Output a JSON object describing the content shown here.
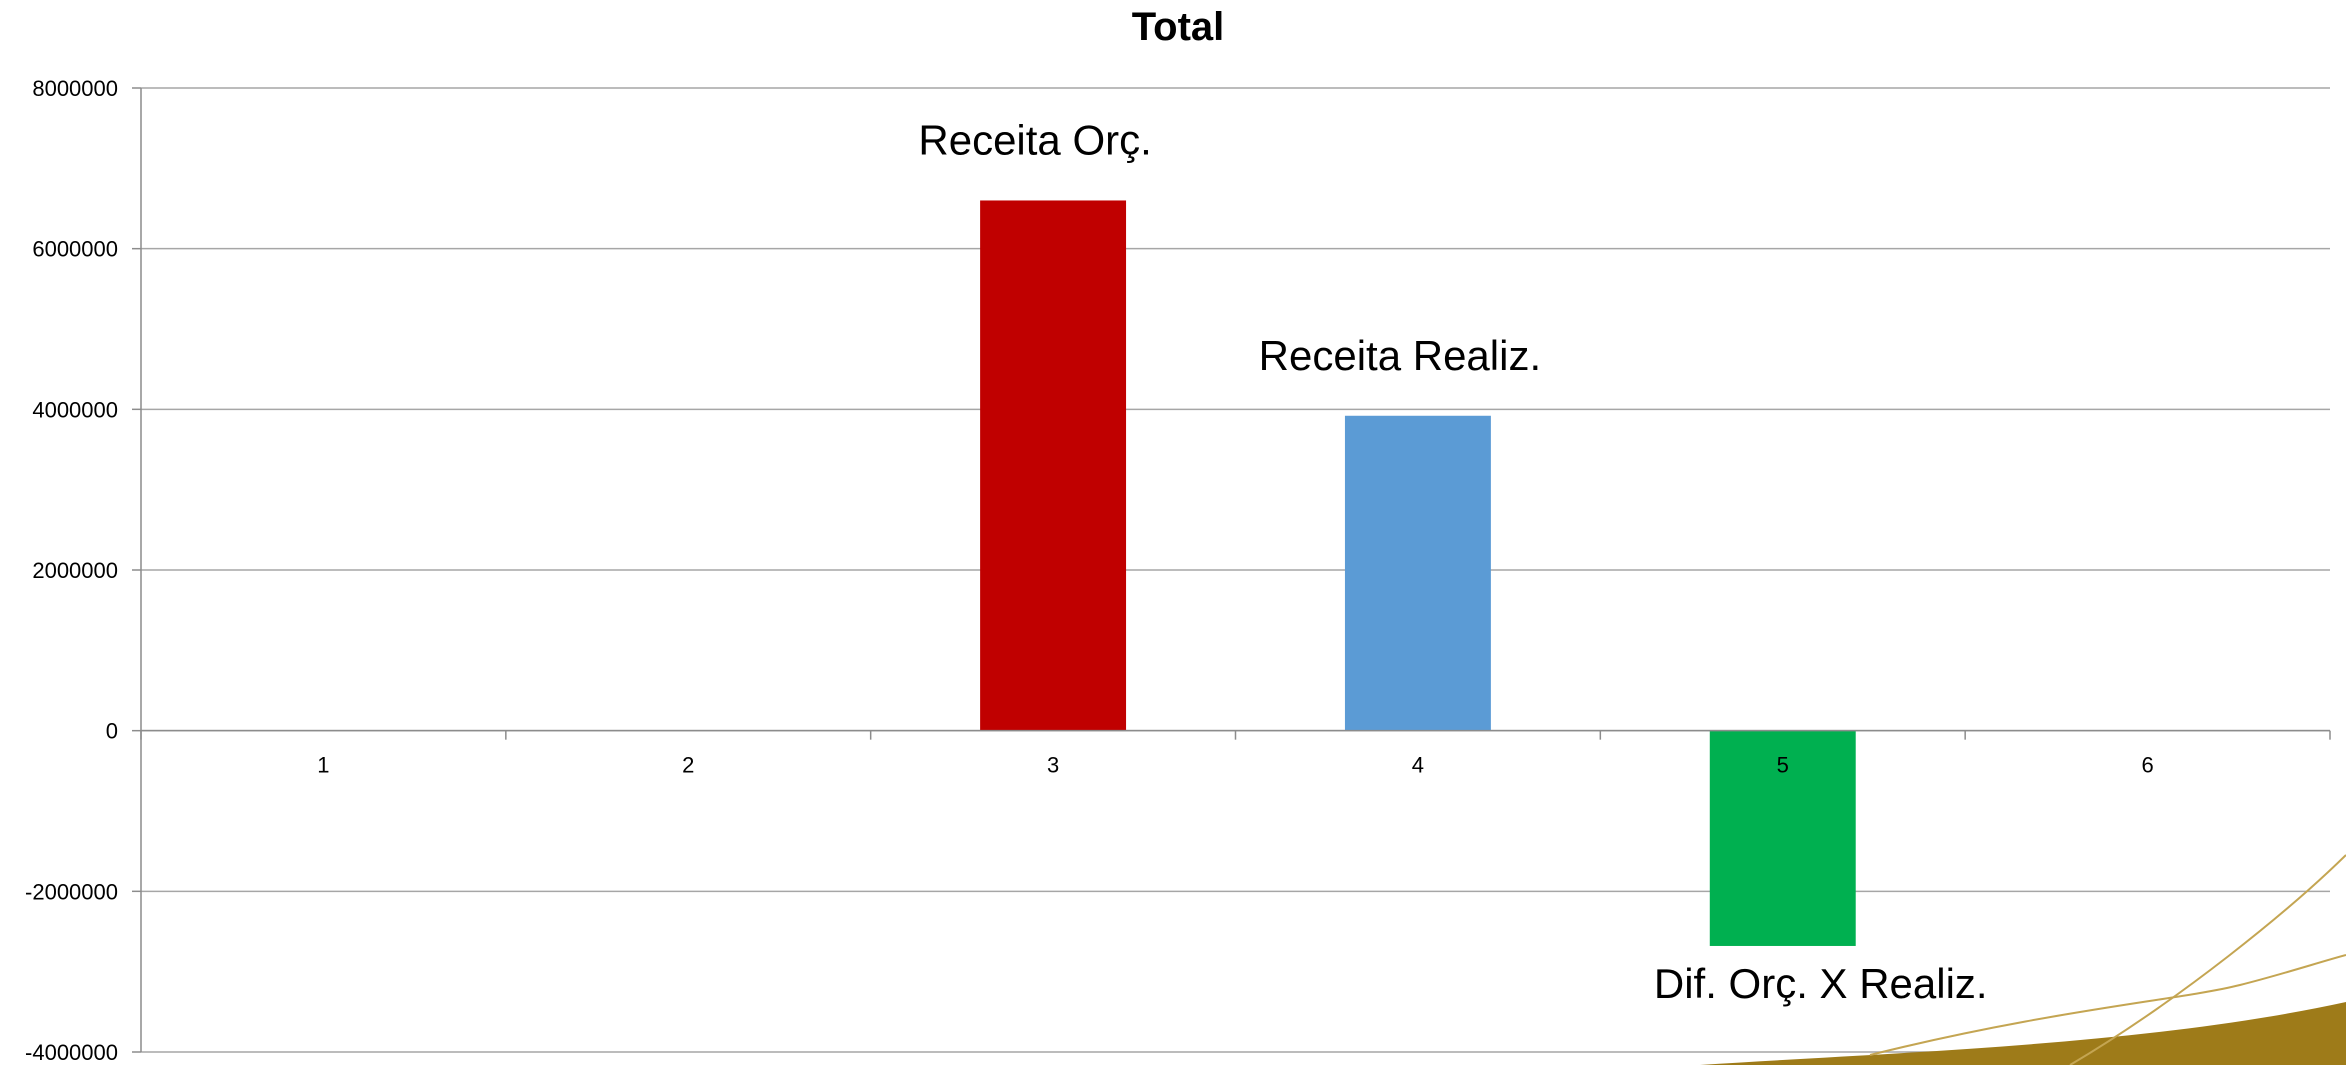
{
  "chart_data": {
    "type": "bar",
    "title": "Total",
    "xlabel": "",
    "ylabel": "",
    "categories": [
      "1",
      "2",
      "3",
      "4",
      "5",
      "6"
    ],
    "ylim": [
      -4000000,
      8000000
    ],
    "yticks": [
      "8000000",
      "6000000",
      "4000000",
      "2000000",
      "0",
      "-2000000",
      "-4000000"
    ],
    "grid": true,
    "legend": "none",
    "series": [
      {
        "values": [
          null,
          null,
          6600000,
          3920000,
          -2680000,
          null
        ],
        "colors": [
          "#c00000",
          "#c00000",
          "#c00000",
          "#5b9bd5",
          "#00b050",
          "#c00000"
        ]
      }
    ],
    "data_labels": [
      {
        "category": "3",
        "text": "Receita Orç."
      },
      {
        "category": "4",
        "text": "Receita Realiz."
      },
      {
        "category": "5",
        "text": "Dif. Orç. X Realiz."
      }
    ]
  },
  "decoration": {
    "swoosh_colors": [
      "#9e7b19",
      "#c4a552"
    ]
  }
}
